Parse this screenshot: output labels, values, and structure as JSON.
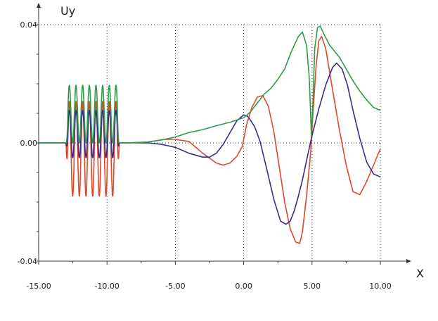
{
  "chart_data": {
    "type": "line",
    "xlabel": "X",
    "ylabel": "Uy",
    "xlim": [
      -15,
      10
    ],
    "ylim": [
      -0.04,
      0.04
    ],
    "grid": true,
    "x_ticks": [
      "-15.00",
      "-10.00",
      "-5.00",
      "0.00",
      "5.00",
      "10.00"
    ],
    "y_ticks": [
      "0.04",
      "0.00",
      "-0.04"
    ],
    "colors": {
      "red": "#e0482a",
      "blue": "#3a2c8c",
      "green": "#2e9c48",
      "grid": "#333333",
      "axis": "#333333"
    },
    "series": [
      {
        "color": "#e0482a",
        "oscillation": {
          "x_start": -13.0,
          "x_end": -9.1,
          "peaks": 8,
          "max": 0.014,
          "min": -0.018
        },
        "x": [
          -15,
          -13,
          -9.1,
          -8.5,
          -7,
          -5.8,
          -5,
          -4,
          -3,
          -2,
          -1.5,
          -1,
          -0.5,
          -0.1,
          0.2,
          0.6,
          1,
          1.4,
          1.8,
          2.2,
          2.6,
          3,
          3.4,
          3.8,
          4.1,
          4.3,
          4.6,
          4.9,
          5.1,
          5.3,
          5.5,
          5.7,
          6,
          6.5,
          7,
          7.5,
          8,
          8.5,
          9,
          9.5,
          10
        ],
        "y": [
          0,
          0,
          0,
          0,
          0.0003,
          0.0012,
          0.0012,
          0.0005,
          -0.0035,
          -0.0068,
          -0.0075,
          -0.0068,
          -0.0045,
          -0.0012,
          0.006,
          0.012,
          0.0155,
          0.016,
          0.0125,
          0.004,
          -0.008,
          -0.02,
          -0.029,
          -0.0335,
          -0.034,
          -0.03,
          -0.018,
          -0.003,
          0.012,
          0.026,
          0.0345,
          0.036,
          0.032,
          0.018,
          0.0045,
          -0.0075,
          -0.0165,
          -0.0175,
          -0.013,
          -0.0075,
          -0.002
        ]
      },
      {
        "color": "#3a2c8c",
        "oscillation": {
          "x_start": -13.0,
          "x_end": -9.1,
          "peaks": 8,
          "max": 0.011,
          "min": -0.005
        },
        "x": [
          -15,
          -13,
          -9.1,
          -8.5,
          -7,
          -6,
          -5,
          -4,
          -3,
          -2.5,
          -2,
          -1.5,
          -1,
          -0.5,
          0,
          0.3,
          0.8,
          1.2,
          1.7,
          2.2,
          2.7,
          3.1,
          3.4,
          3.7,
          4,
          4.3,
          4.6,
          5,
          5.5,
          6,
          6.5,
          6.8,
          7.2,
          7.6,
          8,
          8.5,
          9,
          9.5,
          10
        ],
        "y": [
          0,
          0,
          0,
          0,
          0,
          -0.0005,
          -0.0015,
          -0.0035,
          -0.0048,
          -0.0048,
          -0.0035,
          -0.0005,
          0.0035,
          0.0075,
          0.0095,
          0.009,
          0.0055,
          0.0005,
          -0.009,
          -0.019,
          -0.0265,
          -0.0275,
          -0.0265,
          -0.023,
          -0.018,
          -0.0125,
          -0.006,
          0.0025,
          0.0115,
          0.0195,
          0.0255,
          0.027,
          0.025,
          0.0195,
          0.011,
          0.0015,
          -0.0065,
          -0.0105,
          -0.0115
        ]
      },
      {
        "color": "#2e9c48",
        "oscillation": {
          "x_start": -13.0,
          "x_end": -9.1,
          "peaks": 8,
          "max": 0.0195,
          "min": 0.0
        },
        "x": [
          -15,
          -13,
          -9.1,
          -8.5,
          -7,
          -6,
          -5,
          -4,
          -3,
          -2,
          -1,
          0,
          0.5,
          1,
          1.5,
          2,
          2.5,
          3,
          3.5,
          4,
          4.3,
          4.6,
          4.8,
          4.95,
          5.05,
          5.2,
          5.4,
          5.6,
          5.9,
          6.3,
          7,
          7.5,
          8,
          8.5,
          9,
          9.5,
          10
        ],
        "y": [
          0,
          0,
          0,
          0,
          0.0003,
          0.001,
          0.002,
          0.0035,
          0.0045,
          0.0058,
          0.007,
          0.0085,
          0.0105,
          0.0135,
          0.0165,
          0.0185,
          0.0215,
          0.025,
          0.031,
          0.036,
          0.0375,
          0.033,
          0.022,
          0.003,
          0.012,
          0.032,
          0.039,
          0.0395,
          0.0365,
          0.033,
          0.029,
          0.025,
          0.021,
          0.0175,
          0.0145,
          0.012,
          0.011
        ]
      }
    ]
  }
}
